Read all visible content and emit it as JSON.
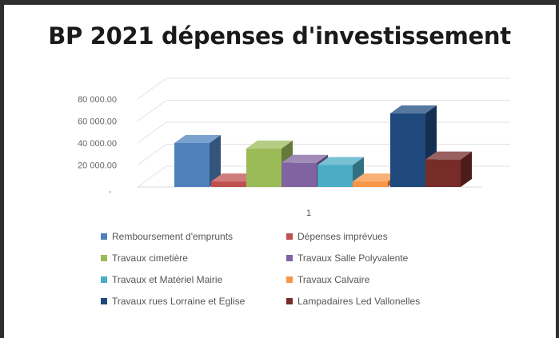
{
  "chart_data": {
    "type": "bar",
    "title": "BP 2021 dépenses d'investissement",
    "categories": [
      "1"
    ],
    "yticks": [
      "",
      "20 000.00",
      "40 000.00",
      "60 000.00",
      "80 000.00"
    ],
    "ylim": [
      0,
      80000
    ],
    "grid": true,
    "legend_position": "bottom",
    "series": [
      {
        "name": "Remboursement d'emprunts",
        "values": [
          40000
        ],
        "color": "#4f81bd"
      },
      {
        "name": "Dépenses imprévues",
        "values": [
          5000
        ],
        "color": "#c0504d"
      },
      {
        "name": "Travaux cimetière",
        "values": [
          35000
        ],
        "color": "#9bbb59"
      },
      {
        "name": "Travaux Salle Polyvalente",
        "values": [
          22000
        ],
        "color": "#8064a2"
      },
      {
        "name": "Travaux et Matériel Mairie",
        "values": [
          20000
        ],
        "color": "#4bacc6"
      },
      {
        "name": "Travaux Calvaire",
        "values": [
          5000
        ],
        "color": "#f79646"
      },
      {
        "name": "Travaux rues Lorraine et Eglise",
        "values": [
          67000
        ],
        "color": "#1f497d"
      },
      {
        "name": "Lampadaires Led Vallonelles",
        "values": [
          25000
        ],
        "color": "#772c2a"
      }
    ]
  }
}
